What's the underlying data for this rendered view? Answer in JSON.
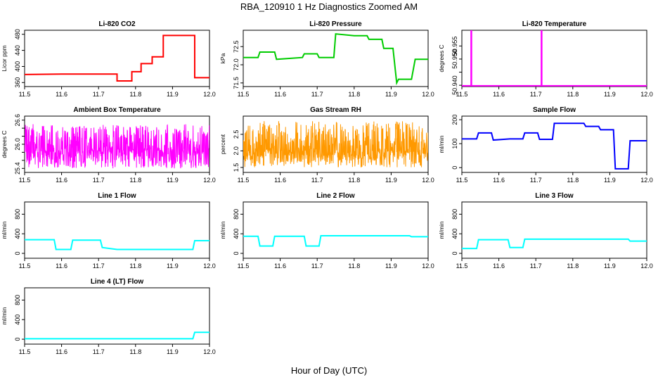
{
  "title": "RBA_120910  1 Hz Diagnostics Zoomed AM",
  "xlabel": "Hour of Day (UTC)",
  "chart_data": [
    {
      "type": "line",
      "title": "Li-820 CO2",
      "xlabel": "",
      "ylabel": "Licor ppm",
      "xlim": [
        11.5,
        12.0
      ],
      "ylim": [
        350,
        490
      ],
      "color": "#ff0000",
      "xticks": [
        11.5,
        11.6,
        11.7,
        11.8,
        11.9,
        12.0
      ],
      "yticks": [
        360,
        400,
        440,
        480
      ],
      "ytick_labels": [
        "360",
        "400",
        "440",
        "480"
      ],
      "series": [
        {
          "points": [
            [
              11.5,
              380
            ],
            [
              11.6,
              381
            ],
            [
              11.7,
              381
            ],
            [
              11.75,
              381
            ],
            [
              11.75,
              364
            ],
            [
              11.79,
              364
            ],
            [
              11.79,
              387
            ],
            [
              11.815,
              387
            ],
            [
              11.815,
              407
            ],
            [
              11.845,
              407
            ],
            [
              11.845,
              424
            ],
            [
              11.875,
              424
            ],
            [
              11.875,
              477
            ],
            [
              11.96,
              477
            ],
            [
              11.96,
              372
            ],
            [
              12.0,
              372
            ]
          ]
        }
      ]
    },
    {
      "type": "line",
      "title": "Li-820 Pressure",
      "xlabel": "",
      "ylabel": "kPa",
      "xlim": [
        11.5,
        12.0
      ],
      "ylim": [
        71.4,
        72.95
      ],
      "color": "#00cc00",
      "xticks": [
        11.5,
        11.6,
        11.7,
        11.8,
        11.9,
        12.0
      ],
      "yticks": [
        71.5,
        72.0,
        72.5
      ],
      "ytick_labels": [
        "71.5",
        "72.0",
        "72.5"
      ],
      "series": [
        {
          "points": [
            [
              11.5,
              72.2
            ],
            [
              11.54,
              72.2
            ],
            [
              11.545,
              72.35
            ],
            [
              11.585,
              72.35
            ],
            [
              11.59,
              72.15
            ],
            [
              11.66,
              72.2
            ],
            [
              11.665,
              72.3
            ],
            [
              11.7,
              72.3
            ],
            [
              11.705,
              72.2
            ],
            [
              11.745,
              72.2
            ],
            [
              11.75,
              72.85
            ],
            [
              11.8,
              72.8
            ],
            [
              11.835,
              72.8
            ],
            [
              11.84,
              72.7
            ],
            [
              11.875,
              72.7
            ],
            [
              11.88,
              72.45
            ],
            [
              11.905,
              72.45
            ],
            [
              11.915,
              71.5
            ],
            [
              11.92,
              71.6
            ],
            [
              11.955,
              71.6
            ],
            [
              11.965,
              72.15
            ],
            [
              12.0,
              72.15
            ]
          ]
        }
      ]
    },
    {
      "type": "line",
      "title": "Li-820 Temperature",
      "xlabel": "",
      "ylabel": "degrees C",
      "xlim": [
        11.5,
        12.0
      ],
      "ylim": [
        50.9395,
        50.961
      ],
      "color": "#ff00ff",
      "xticks": [
        11.5,
        11.6,
        11.7,
        11.8,
        11.9,
        12.0
      ],
      "yticks": [
        50.94,
        50.945,
        50.95,
        50.955
      ],
      "ytick_labels": [
        "50.940",
        "",
        "50.950",
        "50.955"
      ],
      "series": [
        {
          "points": [
            [
              11.5,
              50.9398
            ],
            [
              11.525,
              50.9398
            ],
            [
              11.525,
              50.961
            ],
            [
              11.526,
              50.961
            ],
            [
              11.526,
              50.9398
            ],
            [
              11.715,
              50.9398
            ],
            [
              11.715,
              50.961
            ],
            [
              11.716,
              50.961
            ],
            [
              11.716,
              50.9398
            ],
            [
              12.0,
              50.9398
            ]
          ]
        }
      ]
    },
    {
      "type": "line",
      "title": "Ambient Box Temperature",
      "xlabel": "",
      "ylabel": "degrees C",
      "xlim": [
        11.5,
        12.0
      ],
      "ylim": [
        25.3,
        26.7
      ],
      "color": "#ff00ff",
      "xticks": [
        11.5,
        11.6,
        11.7,
        11.8,
        11.9,
        12.0
      ],
      "yticks": [
        25.4,
        25.6,
        25.8,
        26.0,
        26.2,
        26.4,
        26.6
      ],
      "ytick_labels": [
        "25.4",
        "",
        "",
        "26.0",
        "",
        "",
        "26.6"
      ],
      "noise": {
        "center": 25.85,
        "low": 25.4,
        "high": 26.5,
        "count": 700
      }
    },
    {
      "type": "line",
      "title": "Gas Stream RH",
      "xlabel": "",
      "ylabel": "percent",
      "xlim": [
        11.5,
        12.0
      ],
      "ylim": [
        1.35,
        3.05
      ],
      "color": "#ff9900",
      "xticks": [
        11.5,
        11.6,
        11.7,
        11.8,
        11.9,
        12.0
      ],
      "yticks": [
        1.5,
        2.0,
        2.5
      ],
      "ytick_labels": [
        "1.5",
        "2.0",
        "2.5"
      ],
      "noise": {
        "center": 2.0,
        "low": 1.5,
        "high": 2.9,
        "count": 700
      }
    },
    {
      "type": "line",
      "title": "Sample Flow",
      "xlabel": "",
      "ylabel": "ml/min",
      "xlim": [
        11.5,
        12.0
      ],
      "ylim": [
        -20,
        215
      ],
      "color": "#0000ff",
      "xticks": [
        11.5,
        11.6,
        11.7,
        11.8,
        11.9,
        12.0
      ],
      "yticks": [
        0,
        100,
        200
      ],
      "ytick_labels": [
        "0",
        "100",
        "200"
      ],
      "series": [
        {
          "points": [
            [
              11.5,
              120
            ],
            [
              11.54,
              120
            ],
            [
              11.545,
              145
            ],
            [
              11.58,
              145
            ],
            [
              11.585,
              115
            ],
            [
              11.63,
              120
            ],
            [
              11.665,
              120
            ],
            [
              11.67,
              145
            ],
            [
              11.705,
              145
            ],
            [
              11.71,
              118
            ],
            [
              11.745,
              118
            ],
            [
              11.75,
              185
            ],
            [
              11.83,
              185
            ],
            [
              11.835,
              172
            ],
            [
              11.87,
              172
            ],
            [
              11.875,
              158
            ],
            [
              11.91,
              158
            ],
            [
              11.915,
              -5
            ],
            [
              11.95,
              -5
            ],
            [
              11.955,
              112
            ],
            [
              12.0,
              112
            ]
          ]
        }
      ]
    },
    {
      "type": "line",
      "title": "Line 1 Flow",
      "xlabel": "",
      "ylabel": "ml/min",
      "xlim": [
        11.5,
        12.0
      ],
      "ylim": [
        -100,
        1050
      ],
      "color": "#00ffff",
      "xticks": [
        11.5,
        11.6,
        11.7,
        11.8,
        11.9,
        12.0
      ],
      "yticks": [
        0,
        400,
        800
      ],
      "ytick_labels": [
        "0",
        "400",
        "800"
      ],
      "series": [
        {
          "points": [
            [
              11.5,
              280
            ],
            [
              11.58,
              280
            ],
            [
              11.585,
              80
            ],
            [
              11.625,
              80
            ],
            [
              11.63,
              270
            ],
            [
              11.705,
              270
            ],
            [
              11.71,
              120
            ],
            [
              11.75,
              80
            ],
            [
              11.955,
              80
            ],
            [
              11.96,
              260
            ],
            [
              12.0,
              260
            ]
          ]
        }
      ]
    },
    {
      "type": "line",
      "title": "Line 2 Flow",
      "xlabel": "",
      "ylabel": "ml/min",
      "xlim": [
        11.5,
        12.0
      ],
      "ylim": [
        -100,
        1050
      ],
      "color": "#00ffff",
      "xticks": [
        11.5,
        11.6,
        11.7,
        11.8,
        11.9,
        12.0
      ],
      "yticks": [
        0,
        400,
        800
      ],
      "ytick_labels": [
        "0",
        "400",
        "800"
      ],
      "series": [
        {
          "points": [
            [
              11.5,
              350
            ],
            [
              11.54,
              350
            ],
            [
              11.545,
              150
            ],
            [
              11.58,
              150
            ],
            [
              11.585,
              350
            ],
            [
              11.665,
              350
            ],
            [
              11.67,
              150
            ],
            [
              11.705,
              150
            ],
            [
              11.71,
              360
            ],
            [
              11.95,
              360
            ],
            [
              11.955,
              340
            ],
            [
              12.0,
              340
            ]
          ]
        }
      ]
    },
    {
      "type": "line",
      "title": "Line 3 Flow",
      "xlabel": "",
      "ylabel": "ml/min",
      "xlim": [
        11.5,
        12.0
      ],
      "ylim": [
        -100,
        1050
      ],
      "color": "#00ffff",
      "xticks": [
        11.5,
        11.6,
        11.7,
        11.8,
        11.9,
        12.0
      ],
      "yticks": [
        0,
        400,
        800
      ],
      "ytick_labels": [
        "0",
        "400",
        "800"
      ],
      "series": [
        {
          "points": [
            [
              11.5,
              100
            ],
            [
              11.54,
              100
            ],
            [
              11.545,
              280
            ],
            [
              11.625,
              280
            ],
            [
              11.63,
              120
            ],
            [
              11.665,
              120
            ],
            [
              11.67,
              290
            ],
            [
              11.95,
              290
            ],
            [
              11.955,
              250
            ],
            [
              12.0,
              250
            ]
          ]
        }
      ]
    },
    {
      "type": "line",
      "title": "Line 4 (LT) Flow",
      "xlabel": "",
      "ylabel": "ml/min",
      "xlim": [
        11.5,
        12.0
      ],
      "ylim": [
        -100,
        1050
      ],
      "color": "#00ffff",
      "xticks": [
        11.5,
        11.6,
        11.7,
        11.8,
        11.9,
        12.0
      ],
      "yticks": [
        0,
        400,
        800
      ],
      "ytick_labels": [
        "0",
        "400",
        "800"
      ],
      "series": [
        {
          "points": [
            [
              11.5,
              10
            ],
            [
              11.955,
              10
            ],
            [
              11.96,
              140
            ],
            [
              12.0,
              140
            ]
          ]
        }
      ]
    }
  ]
}
